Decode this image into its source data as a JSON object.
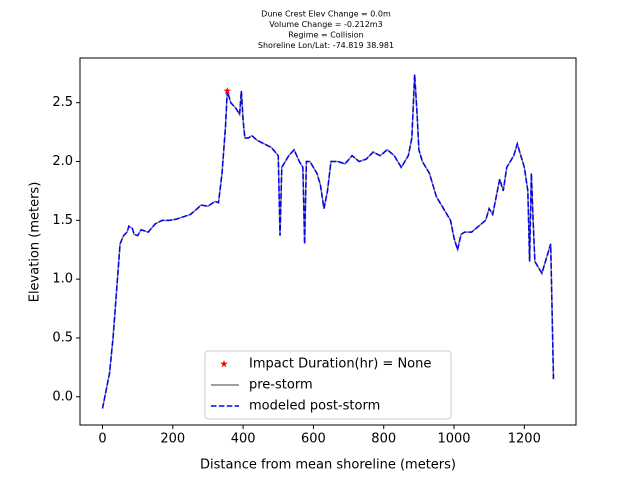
{
  "chart_data": {
    "type": "line",
    "title_lines": [
      "Dune Crest Elev Change = 0.0m",
      "Volume Change = -0.212m3",
      "Regime = Collision",
      "Shoreline Lon/Lat: -74.819 38.981"
    ],
    "x_label": "Distance from mean shoreline (meters)",
    "y_label": "Elevation (meters)",
    "xlim": [
      -64,
      1347
    ],
    "ylim": [
      -0.24,
      2.88
    ],
    "xticks": [
      0,
      200,
      400,
      600,
      800,
      1000,
      1200
    ],
    "yticks": [
      {
        "value": 0,
        "label": "0.0"
      },
      0.5,
      {
        "value": 1,
        "label": "1.0"
      },
      1.5,
      {
        "value": 2,
        "label": "2.0"
      },
      2.5
    ],
    "legend": "lower center",
    "marker": {
      "name": "Impact Duration(hr) = None",
      "x": 355,
      "y": 2.6,
      "color": "#ff0000"
    },
    "x": [
      0,
      10,
      20,
      30,
      40,
      50,
      60,
      70,
      75,
      85,
      90,
      100,
      110,
      130,
      150,
      170,
      190,
      210,
      230,
      250,
      270,
      280,
      300,
      320,
      330,
      340,
      350,
      355,
      365,
      380,
      390,
      395,
      400,
      405,
      415,
      425,
      440,
      460,
      480,
      500,
      505,
      510,
      520,
      530,
      545,
      560,
      570,
      575,
      580,
      590,
      600,
      610,
      620,
      630,
      640,
      650,
      670,
      690,
      710,
      730,
      750,
      770,
      790,
      810,
      830,
      850,
      870,
      880,
      888,
      895,
      900,
      910,
      930,
      950,
      970,
      980,
      990,
      1000,
      1010,
      1020,
      1030,
      1050,
      1070,
      1090,
      1100,
      1110,
      1120,
      1130,
      1140,
      1150,
      1170,
      1180,
      1190,
      1200,
      1210,
      1215,
      1220,
      1225,
      1230,
      1250,
      1260,
      1270,
      1275,
      1283
    ],
    "series": [
      {
        "name": "pre-storm",
        "color": "#808080",
        "dash": "solid",
        "values": [
          -0.1,
          0.05,
          0.2,
          0.5,
          0.9,
          1.3,
          1.37,
          1.4,
          1.45,
          1.43,
          1.38,
          1.37,
          1.42,
          1.4,
          1.47,
          1.5,
          1.5,
          1.51,
          1.53,
          1.55,
          1.6,
          1.63,
          1.62,
          1.66,
          1.65,
          1.9,
          2.3,
          2.6,
          2.5,
          2.45,
          2.4,
          2.6,
          2.35,
          2.2,
          2.2,
          2.22,
          2.18,
          2.15,
          2.12,
          2.05,
          1.37,
          1.95,
          2.0,
          2.05,
          2.1,
          2.0,
          1.95,
          1.3,
          2.0,
          2.0,
          1.95,
          1.9,
          1.8,
          1.6,
          1.75,
          2.0,
          2.0,
          1.98,
          2.05,
          2.0,
          2.02,
          2.08,
          2.05,
          2.1,
          2.05,
          1.95,
          2.05,
          2.2,
          2.74,
          2.4,
          2.1,
          2.0,
          1.9,
          1.7,
          1.6,
          1.55,
          1.5,
          1.35,
          1.25,
          1.38,
          1.4,
          1.4,
          1.45,
          1.5,
          1.6,
          1.55,
          1.7,
          1.85,
          1.75,
          1.95,
          2.05,
          2.15,
          2.05,
          1.95,
          1.75,
          1.15,
          1.9,
          1.5,
          1.15,
          1.05,
          1.15,
          1.25,
          1.3,
          0.15
        ]
      },
      {
        "name": "modeled post-storm",
        "color": "#0000ff",
        "dash": "dashed",
        "values": [
          -0.1,
          0.05,
          0.2,
          0.5,
          0.9,
          1.3,
          1.37,
          1.4,
          1.45,
          1.43,
          1.38,
          1.37,
          1.42,
          1.4,
          1.47,
          1.5,
          1.5,
          1.51,
          1.53,
          1.55,
          1.6,
          1.63,
          1.62,
          1.66,
          1.65,
          1.9,
          2.3,
          2.6,
          2.5,
          2.45,
          2.4,
          2.6,
          2.35,
          2.2,
          2.2,
          2.22,
          2.18,
          2.15,
          2.12,
          2.05,
          1.37,
          1.95,
          2.0,
          2.05,
          2.1,
          2.0,
          1.95,
          1.3,
          2.0,
          2.0,
          1.95,
          1.9,
          1.8,
          1.6,
          1.75,
          2.0,
          2.0,
          1.98,
          2.05,
          2.0,
          2.02,
          2.08,
          2.05,
          2.1,
          2.05,
          1.95,
          2.05,
          2.2,
          2.74,
          2.4,
          2.1,
          2.0,
          1.9,
          1.7,
          1.6,
          1.55,
          1.5,
          1.35,
          1.25,
          1.38,
          1.4,
          1.4,
          1.45,
          1.5,
          1.6,
          1.55,
          1.7,
          1.85,
          1.75,
          1.95,
          2.05,
          2.15,
          2.05,
          1.95,
          1.75,
          1.15,
          1.9,
          1.5,
          1.15,
          1.05,
          1.15,
          1.25,
          1.3,
          0.15
        ]
      }
    ]
  }
}
